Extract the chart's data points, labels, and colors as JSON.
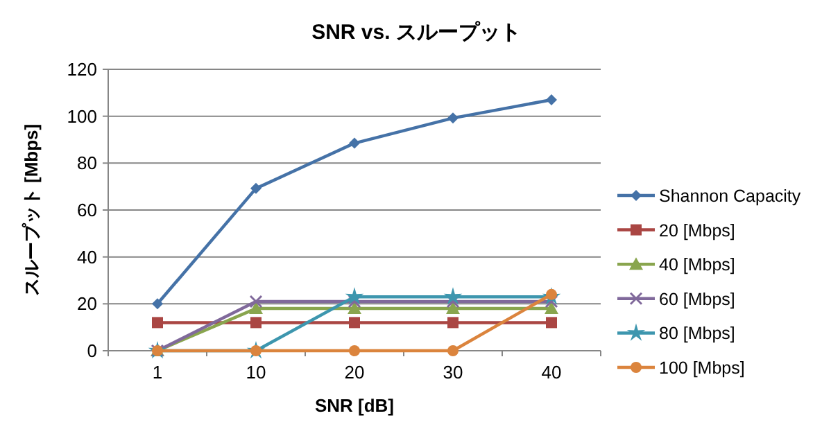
{
  "chart_data": {
    "type": "line",
    "title": "SNR vs. スループット",
    "xlabel": "SNR [dB]",
    "ylabel": "スループット [Mbps]",
    "categories": [
      "1",
      "10",
      "20",
      "30",
      "40"
    ],
    "series": [
      {
        "name": "Shannon Capacity",
        "color": "#4572a7",
        "marker": "diamond",
        "values": [
          20,
          69.2,
          88.5,
          99.2,
          107
        ]
      },
      {
        "name": "20 [Mbps]",
        "color": "#aa4643",
        "marker": "square",
        "values": [
          12,
          12,
          12,
          12,
          12
        ]
      },
      {
        "name": "40 [Mbps]",
        "color": "#89a54e",
        "marker": "triangle",
        "values": [
          0,
          18,
          18,
          18,
          18
        ]
      },
      {
        "name": "60 [Mbps]",
        "color": "#80699b",
        "marker": "cross",
        "values": [
          0,
          21,
          21,
          21,
          21
        ]
      },
      {
        "name": "80 [Mbps]",
        "color": "#3d96ae",
        "marker": "star",
        "values": [
          0,
          0,
          23,
          23,
          23
        ]
      },
      {
        "name": "100 [Mbps]",
        "color": "#db843d",
        "marker": "circle",
        "values": [
          0,
          0,
          0,
          0,
          24
        ]
      }
    ],
    "ylim": [
      0,
      120
    ],
    "yticks": [
      0,
      20,
      40,
      60,
      80,
      100,
      120
    ],
    "grid": "y",
    "legend": "right"
  }
}
